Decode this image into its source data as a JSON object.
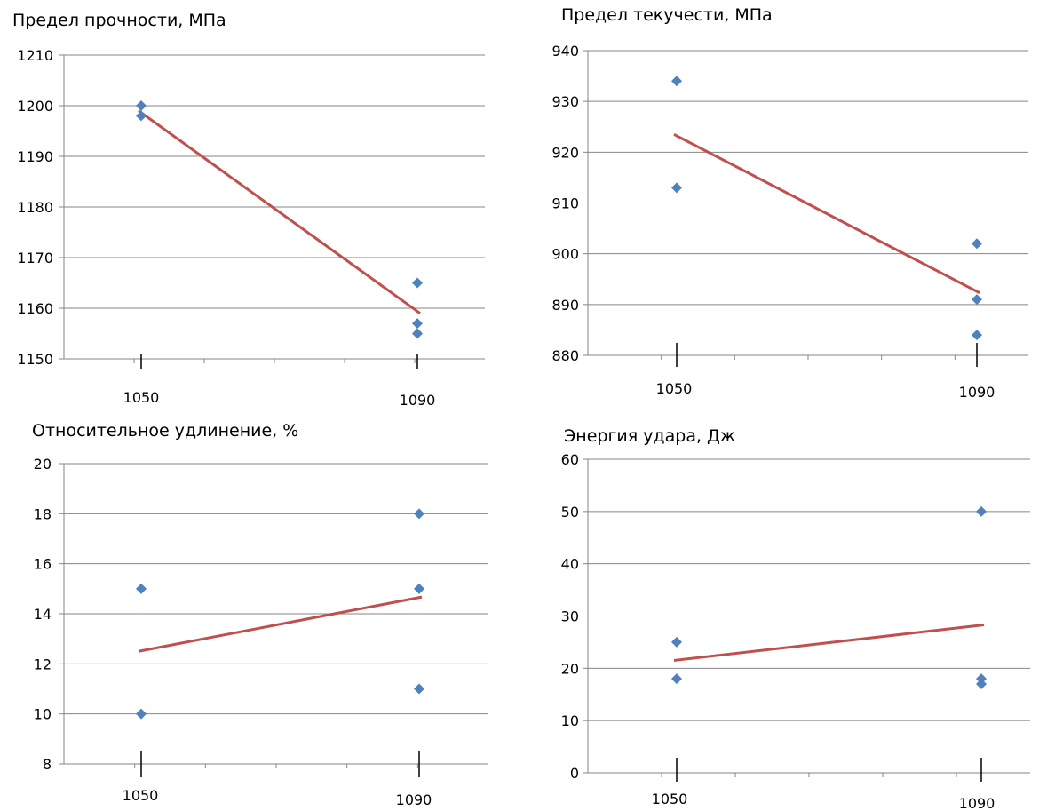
{
  "chart_data": [
    {
      "type": "scatter",
      "title": "Предел прочности, МПа",
      "categories": [
        "1050",
        "1090"
      ],
      "points": [
        {
          "x": "1050",
          "y": 1200
        },
        {
          "x": "1050",
          "y": 1198
        },
        {
          "x": "1090",
          "y": 1165
        },
        {
          "x": "1090",
          "y": 1157
        },
        {
          "x": "1090",
          "y": 1155
        }
      ],
      "trendline": {
        "x": [
          "1050",
          "1090"
        ],
        "y": [
          1199,
          1159
        ]
      },
      "ylim": [
        1150,
        1210
      ],
      "yticks": [
        1150,
        1160,
        1170,
        1180,
        1190,
        1200,
        1210
      ],
      "grid": true,
      "point_color": "#4F81BD",
      "trend_color": "#C0504D"
    },
    {
      "type": "scatter",
      "title": "Предел текучести, МПа",
      "categories": [
        "1050",
        "1090"
      ],
      "points": [
        {
          "x": "1050",
          "y": 934
        },
        {
          "x": "1050",
          "y": 913
        },
        {
          "x": "1090",
          "y": 902
        },
        {
          "x": "1090",
          "y": 891
        },
        {
          "x": "1090",
          "y": 884
        }
      ],
      "trendline": {
        "x": [
          "1050",
          "1090"
        ],
        "y": [
          923.5,
          892.3
        ]
      },
      "ylim": [
        880,
        940
      ],
      "yticks": [
        880,
        890,
        900,
        910,
        920,
        930,
        940
      ],
      "grid": true,
      "point_color": "#4F81BD",
      "trend_color": "#C0504D"
    },
    {
      "type": "scatter",
      "title": "Относительное удлинение, %",
      "categories": [
        "1050",
        "1090"
      ],
      "points": [
        {
          "x": "1050",
          "y": 15
        },
        {
          "x": "1050",
          "y": 10
        },
        {
          "x": "1090",
          "y": 18
        },
        {
          "x": "1090",
          "y": 15
        },
        {
          "x": "1090",
          "y": 11
        }
      ],
      "trendline": {
        "x": [
          "1050",
          "1090"
        ],
        "y": [
          12.5,
          14.67
        ]
      },
      "ylim": [
        8,
        20
      ],
      "yticks": [
        8,
        10,
        12,
        14,
        16,
        18,
        20
      ],
      "grid": true,
      "point_color": "#4F81BD",
      "trend_color": "#C0504D"
    },
    {
      "type": "scatter",
      "title": "Энергия удара, Дж",
      "categories": [
        "1050",
        "1090"
      ],
      "points": [
        {
          "x": "1050",
          "y": 25
        },
        {
          "x": "1050",
          "y": 18
        },
        {
          "x": "1090",
          "y": 50
        },
        {
          "x": "1090",
          "y": 18
        },
        {
          "x": "1090",
          "y": 17
        }
      ],
      "trendline": {
        "x": [
          "1050",
          "1090"
        ],
        "y": [
          21.5,
          28.3
        ]
      },
      "ylim": [
        0,
        60
      ],
      "yticks": [
        0,
        10,
        20,
        30,
        40,
        50,
        60
      ],
      "grid": true,
      "point_color": "#4F81BD",
      "trend_color": "#C0504D"
    }
  ]
}
